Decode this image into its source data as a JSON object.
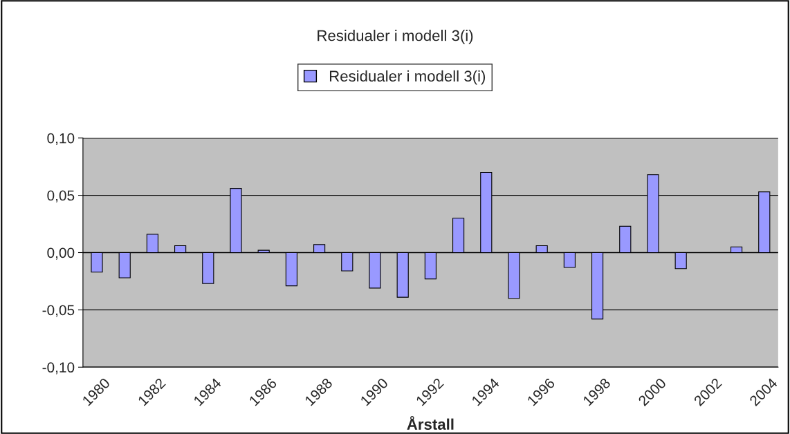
{
  "chart_data": {
    "type": "bar",
    "title": "Residualer i modell 3(i)",
    "xlabel": "Årstall",
    "categories": [
      "1980",
      null,
      "1982",
      null,
      "1984",
      null,
      "1986",
      null,
      "1988",
      null,
      "1990",
      null,
      "1992",
      null,
      "1994",
      null,
      "1996",
      null,
      "1998",
      null,
      "2000",
      null,
      "2002",
      null,
      "2004"
    ],
    "series": [
      {
        "name": "Residualer i modell 3(i)",
        "color": "#9999ff",
        "values": [
          -0.017,
          -0.022,
          0.016,
          0.006,
          -0.027,
          0.056,
          0.002,
          -0.029,
          0.007,
          -0.016,
          -0.031,
          -0.039,
          -0.023,
          0.03,
          0.07,
          -0.04,
          0.006,
          -0.013,
          -0.058,
          0.023,
          0.068,
          -0.014,
          null,
          0.005,
          0.053
        ]
      }
    ],
    "ylim": [
      -0.1,
      0.1
    ],
    "yticks": [
      {
        "value": -0.1,
        "label": "-0,10"
      },
      {
        "value": -0.05,
        "label": "-0,05"
      },
      {
        "value": 0,
        "label": "0,00"
      },
      {
        "value": 0.05,
        "label": "0,05"
      },
      {
        "value": 0.1,
        "label": "0,10"
      }
    ],
    "grid": "y",
    "legend": "top"
  }
}
